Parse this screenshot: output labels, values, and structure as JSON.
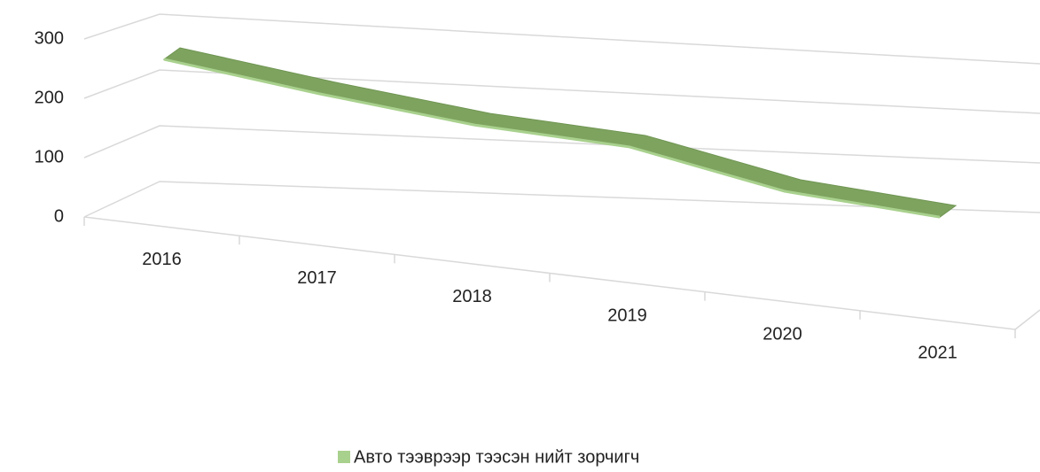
{
  "chart_data": {
    "type": "line3d",
    "categories": [
      "2016",
      "2017",
      "2018",
      "2019",
      "2020",
      "2021"
    ],
    "series": [
      {
        "name": "Авто тээврээр тээсэн нийт зорчигч",
        "color": "#a9d18e",
        "values": [
          219,
          178,
          141,
          120,
          54,
          22
        ]
      }
    ],
    "ylim": [
      0,
      300
    ],
    "yticks": [
      0,
      100,
      200,
      300
    ],
    "grid": true,
    "legend": "bottom"
  }
}
